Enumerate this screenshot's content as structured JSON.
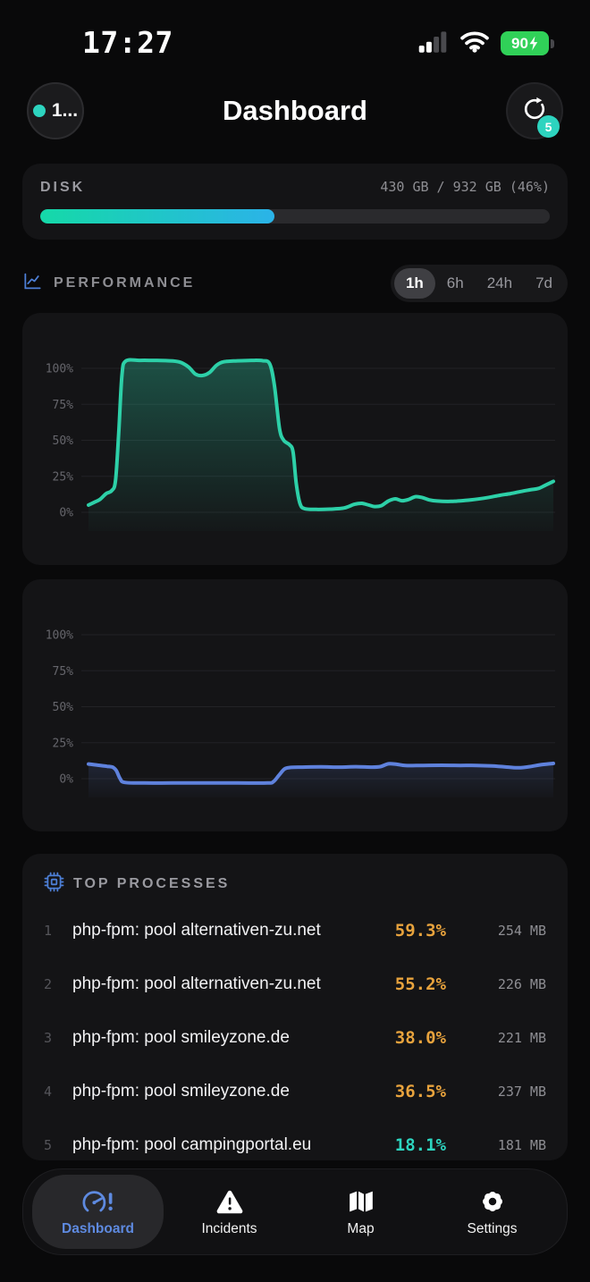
{
  "status_bar": {
    "time": "17:27",
    "battery_percent": "90"
  },
  "header": {
    "avatar_label": "1...",
    "title": "Dashboard",
    "refresh_badge": "5"
  },
  "disk": {
    "label": "DISK",
    "usage": "430 GB / 932 GB (46%)",
    "percent": 46,
    "bar_gradient": [
      "#15d9a8",
      "#2bb3e8"
    ]
  },
  "performance": {
    "label": "PERFORMANCE",
    "ranges": [
      "1h",
      "6h",
      "24h",
      "7d"
    ],
    "selected_range": "1h"
  },
  "chart_data": [
    {
      "type": "area",
      "series_color": "#2dd0a8",
      "fill_opacity": 0.32,
      "y_ticks": [
        "100%",
        "75%",
        "50%",
        "25%",
        "0%"
      ],
      "ylim": [
        -5,
        110
      ],
      "grid": true,
      "legend": false,
      "points": [
        [
          0,
          5
        ],
        [
          0.013,
          7
        ],
        [
          0.025,
          9
        ],
        [
          0.038,
          13
        ],
        [
          0.05,
          15
        ],
        [
          0.058,
          22
        ],
        [
          0.065,
          55
        ],
        [
          0.072,
          95
        ],
        [
          0.08,
          105
        ],
        [
          0.11,
          105.5
        ],
        [
          0.14,
          105.5
        ],
        [
          0.17,
          105.3
        ],
        [
          0.195,
          104.5
        ],
        [
          0.215,
          101
        ],
        [
          0.23,
          96
        ],
        [
          0.245,
          95
        ],
        [
          0.26,
          97
        ],
        [
          0.275,
          102
        ],
        [
          0.29,
          104.5
        ],
        [
          0.32,
          105.2
        ],
        [
          0.35,
          105.5
        ],
        [
          0.375,
          105.3
        ],
        [
          0.39,
          103
        ],
        [
          0.4,
          88
        ],
        [
          0.411,
          58
        ],
        [
          0.42,
          50
        ],
        [
          0.432,
          47
        ],
        [
          0.44,
          42
        ],
        [
          0.447,
          20
        ],
        [
          0.455,
          6
        ],
        [
          0.465,
          2.5
        ],
        [
          0.49,
          2
        ],
        [
          0.52,
          2.2
        ],
        [
          0.55,
          3
        ],
        [
          0.572,
          5.5
        ],
        [
          0.588,
          6.2
        ],
        [
          0.603,
          5
        ],
        [
          0.615,
          4
        ],
        [
          0.63,
          4.6
        ],
        [
          0.645,
          7.8
        ],
        [
          0.66,
          9.3
        ],
        [
          0.674,
          8
        ],
        [
          0.688,
          8.8
        ],
        [
          0.703,
          10.8
        ],
        [
          0.718,
          10.2
        ],
        [
          0.733,
          8.6
        ],
        [
          0.75,
          7.8
        ],
        [
          0.78,
          7.6
        ],
        [
          0.81,
          8.2
        ],
        [
          0.838,
          9.2
        ],
        [
          0.862,
          10.4
        ],
        [
          0.885,
          11.8
        ],
        [
          0.908,
          13
        ],
        [
          0.93,
          14.4
        ],
        [
          0.95,
          15.6
        ],
        [
          0.968,
          16.6
        ],
        [
          0.984,
          19
        ],
        [
          1,
          21.5
        ]
      ]
    },
    {
      "type": "line",
      "series_color": "#5f82dd",
      "fill_opacity": 0.16,
      "y_ticks": [
        "100%",
        "75%",
        "50%",
        "25%",
        "0%"
      ],
      "ylim": [
        -5,
        110
      ],
      "grid": true,
      "legend": false,
      "points": [
        [
          0,
          10.2
        ],
        [
          0.02,
          9.4
        ],
        [
          0.04,
          8.6
        ],
        [
          0.052,
          8
        ],
        [
          0.06,
          5.5
        ],
        [
          0.068,
          0
        ],
        [
          0.078,
          -2.6
        ],
        [
          0.12,
          -3
        ],
        [
          0.18,
          -3
        ],
        [
          0.25,
          -3
        ],
        [
          0.32,
          -3
        ],
        [
          0.385,
          -3
        ],
        [
          0.398,
          -2
        ],
        [
          0.41,
          2.5
        ],
        [
          0.422,
          6.8
        ],
        [
          0.435,
          7.8
        ],
        [
          0.46,
          8
        ],
        [
          0.5,
          8.2
        ],
        [
          0.54,
          8
        ],
        [
          0.575,
          8.3
        ],
        [
          0.61,
          8
        ],
        [
          0.628,
          8.4
        ],
        [
          0.645,
          10.3
        ],
        [
          0.663,
          10
        ],
        [
          0.682,
          9.1
        ],
        [
          0.72,
          9.2
        ],
        [
          0.76,
          9.3
        ],
        [
          0.8,
          9.2
        ],
        [
          0.835,
          9.2
        ],
        [
          0.868,
          8.8
        ],
        [
          0.9,
          8.1
        ],
        [
          0.925,
          7.6
        ],
        [
          0.948,
          8.3
        ],
        [
          0.972,
          9.6
        ],
        [
          1,
          10.6
        ]
      ]
    }
  ],
  "top_processes": {
    "title": "TOP PROCESSES",
    "rows": [
      {
        "index": "1",
        "name": "php-fpm: pool alternativen-zu.net",
        "cpu": "59.3%",
        "mem": "254 MB",
        "cpu_color": "#e8a33d"
      },
      {
        "index": "2",
        "name": "php-fpm: pool alternativen-zu.net",
        "cpu": "55.2%",
        "mem": "226 MB",
        "cpu_color": "#e8a33d"
      },
      {
        "index": "3",
        "name": "php-fpm: pool smileyzone.de",
        "cpu": "38.0%",
        "mem": "221 MB",
        "cpu_color": "#e8a33d"
      },
      {
        "index": "4",
        "name": "php-fpm: pool smileyzone.de",
        "cpu": "36.5%",
        "mem": "237 MB",
        "cpu_color": "#e8a33d"
      },
      {
        "index": "5",
        "name": "php-fpm: pool campingportal.eu",
        "cpu": "18.1%",
        "mem": "181 MB",
        "cpu_color": "#2dd4bf"
      }
    ]
  },
  "tab_bar": {
    "items": [
      {
        "label": "Dashboard",
        "active": true
      },
      {
        "label": "Incidents",
        "active": false
      },
      {
        "label": "Map",
        "active": false
      },
      {
        "label": "Settings",
        "active": false
      }
    ]
  }
}
